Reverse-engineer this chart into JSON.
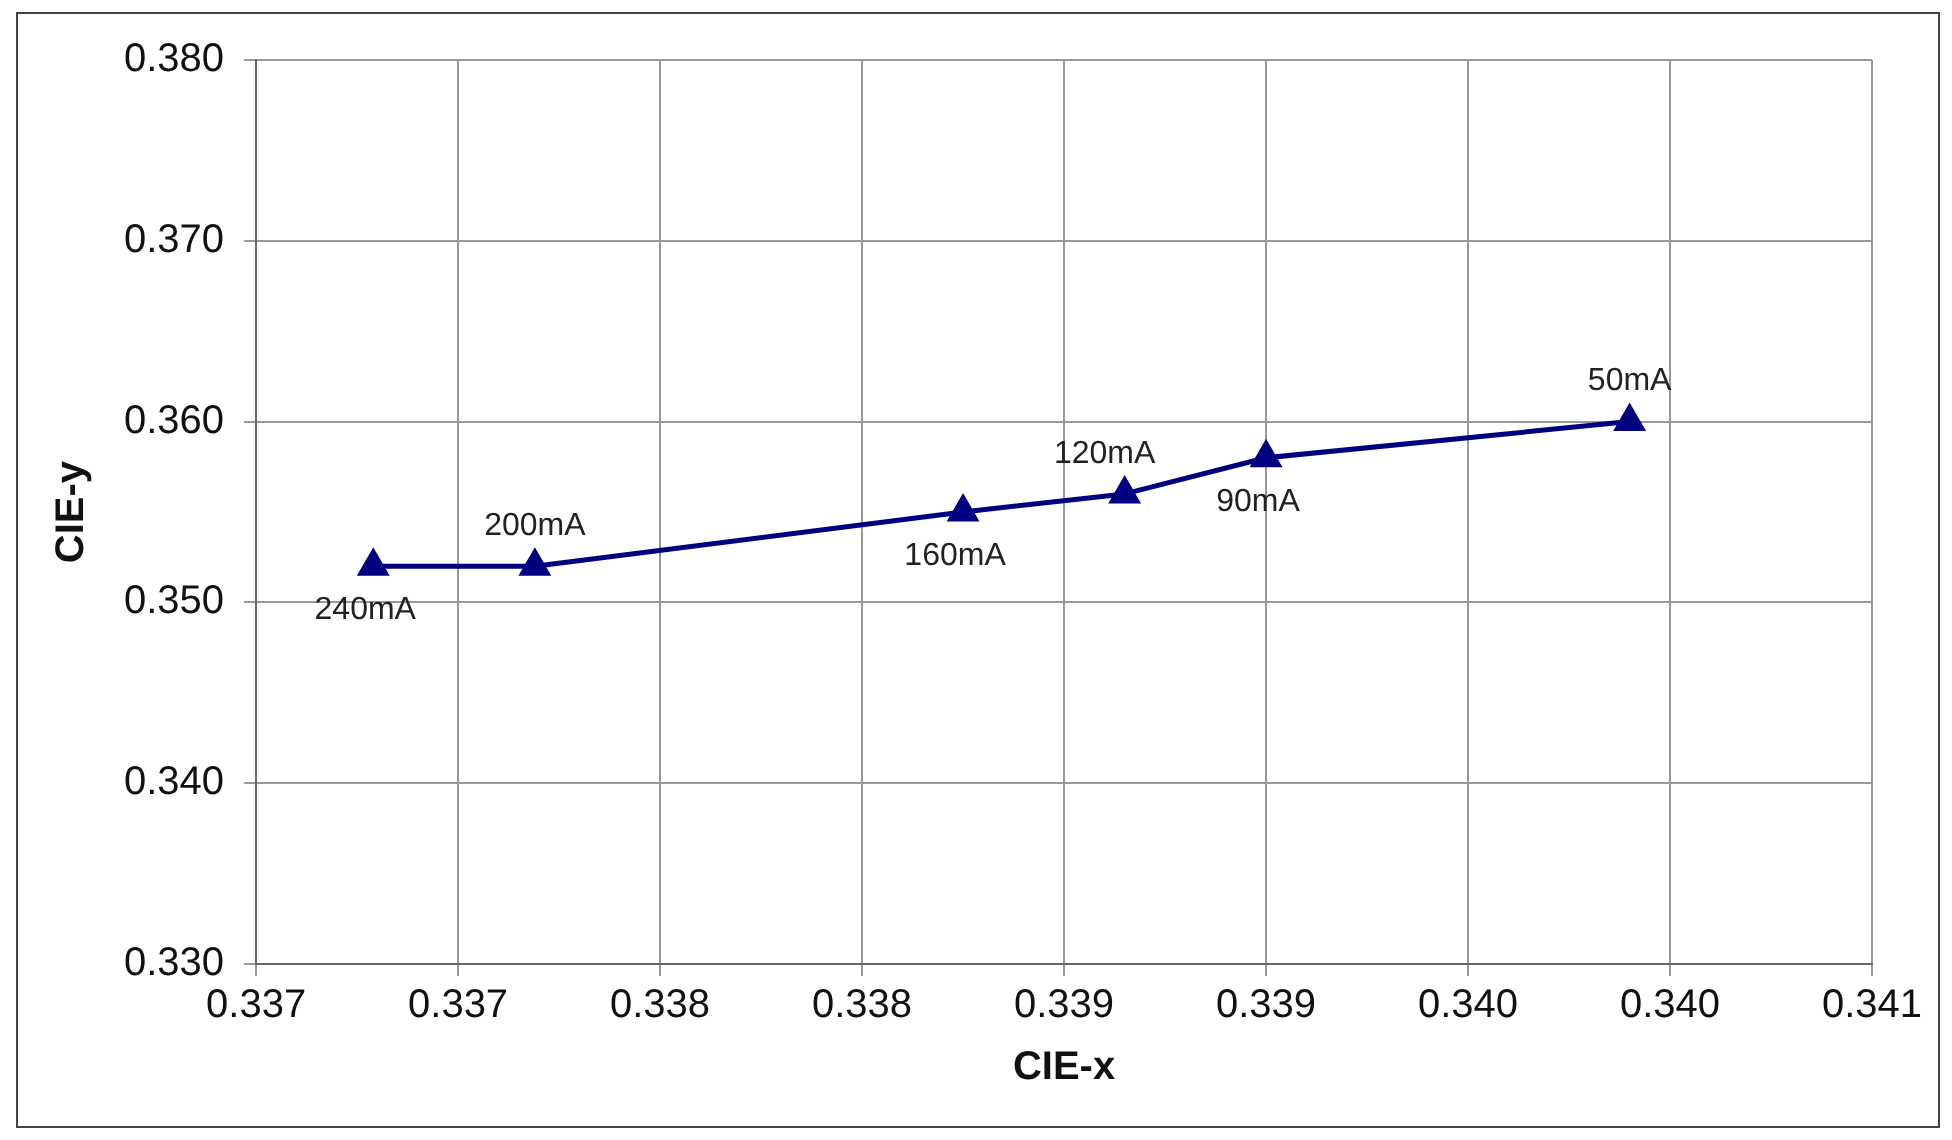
{
  "chart_data": {
    "type": "line",
    "xlabel": "CIE-x",
    "ylabel": "CIE-y",
    "series": [
      {
        "color": "#000080",
        "x": [
          0.33729,
          0.33769,
          0.33875,
          0.33915,
          0.3395,
          0.3404
        ],
        "values": [
          0.352,
          0.352,
          0.355,
          0.356,
          0.358,
          0.36
        ]
      }
    ],
    "xlim": [
      0.337,
      0.341
    ],
    "xticks": [
      {
        "value": 0.337,
        "label": "0.337"
      },
      {
        "value": 0.3375,
        "label": "0.337"
      },
      {
        "value": 0.338,
        "label": "0.338"
      },
      {
        "value": 0.3385,
        "label": "0.338"
      },
      {
        "value": 0.339,
        "label": "0.339"
      },
      {
        "value": 0.3395,
        "label": "0.339"
      },
      {
        "value": 0.34,
        "label": "0.340"
      },
      {
        "value": 0.3405,
        "label": "0.340"
      },
      {
        "value": 0.341,
        "label": "0.341"
      }
    ],
    "ylim": [
      0.33,
      0.38
    ],
    "yticks": [
      {
        "value": 0.33,
        "label": "0.330"
      },
      {
        "value": 0.34,
        "label": "0.340"
      },
      {
        "value": 0.35,
        "label": "0.350"
      },
      {
        "value": 0.36,
        "label": "0.360"
      },
      {
        "value": 0.37,
        "label": "0.370"
      },
      {
        "value": 0.38,
        "label": "0.380"
      }
    ],
    "grid": true,
    "legend": false,
    "marker": "triangle",
    "line_style": "solid",
    "annotations": [
      {
        "text": "240mA",
        "x": 0.33729,
        "y": 0.352
      },
      {
        "text": "200mA",
        "x": 0.33769,
        "y": 0.352
      },
      {
        "text": "160mA",
        "x": 0.33875,
        "y": 0.355
      },
      {
        "text": "120mA",
        "x": 0.33915,
        "y": 0.356
      },
      {
        "text": "90mA",
        "x": 0.3395,
        "y": 0.358
      },
      {
        "text": "50mA",
        "x": 0.3404,
        "y": 0.36
      }
    ]
  }
}
